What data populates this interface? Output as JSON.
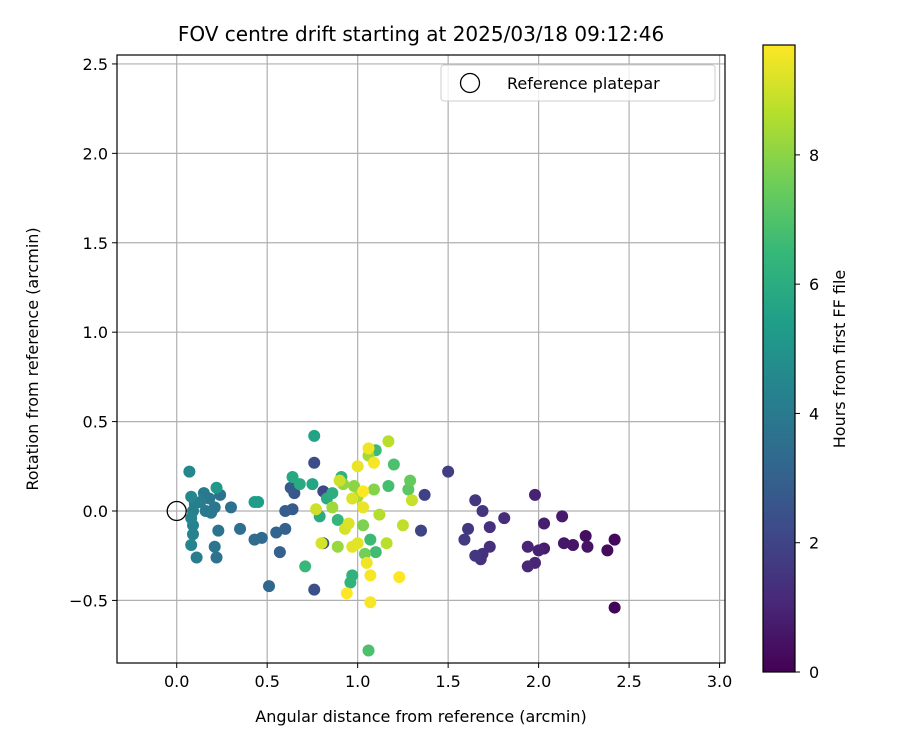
{
  "chart_data": {
    "type": "scatter",
    "title": "FOV centre drift starting at 2025/03/18 09:12:46",
    "xlabel": "Angular distance from reference (arcmin)",
    "ylabel": "Rotation from reference (arcmin)",
    "xlim": [
      -0.33,
      3.03
    ],
    "ylim": [
      -0.85,
      2.55
    ],
    "x_ticks": [
      "0.0",
      "0.5",
      "1.0",
      "1.5",
      "2.0",
      "2.5",
      "3.0"
    ],
    "y_ticks": [
      "−0.5",
      "0.0",
      "0.5",
      "1.0",
      "1.5",
      "2.0",
      "2.5"
    ],
    "grid": true,
    "legend": {
      "position": "top-right",
      "entries": [
        "Reference platepar"
      ]
    },
    "reference_point": {
      "x": 0.0,
      "y": 0.0
    },
    "colorbar": {
      "label": "Hours from first FF file",
      "range": [
        0,
        9.7
      ],
      "ticks": [
        "0",
        "2",
        "4",
        "6",
        "8"
      ],
      "colormap": "viridis"
    },
    "points": [
      {
        "x": 2.42,
        "y": -0.54,
        "h": 0.1
      },
      {
        "x": 2.42,
        "y": -0.16,
        "h": 0.2
      },
      {
        "x": 2.38,
        "y": -0.22,
        "h": 0.3
      },
      {
        "x": 2.26,
        "y": -0.14,
        "h": 0.4
      },
      {
        "x": 2.27,
        "y": -0.2,
        "h": 0.5
      },
      {
        "x": 2.19,
        "y": -0.19,
        "h": 0.5
      },
      {
        "x": 2.14,
        "y": -0.18,
        "h": 0.6
      },
      {
        "x": 2.13,
        "y": -0.03,
        "h": 0.7
      },
      {
        "x": 2.03,
        "y": -0.21,
        "h": 0.8
      },
      {
        "x": 2.03,
        "y": -0.07,
        "h": 0.8
      },
      {
        "x": 2.0,
        "y": -0.22,
        "h": 0.9
      },
      {
        "x": 1.98,
        "y": 0.09,
        "h": 0.9
      },
      {
        "x": 1.98,
        "y": -0.29,
        "h": 1.0
      },
      {
        "x": 1.94,
        "y": -0.2,
        "h": 1.0
      },
      {
        "x": 1.94,
        "y": -0.31,
        "h": 1.1
      },
      {
        "x": 1.81,
        "y": -0.04,
        "h": 1.2
      },
      {
        "x": 1.73,
        "y": -0.2,
        "h": 1.3
      },
      {
        "x": 1.73,
        "y": -0.09,
        "h": 1.3
      },
      {
        "x": 1.69,
        "y": -0.24,
        "h": 1.4
      },
      {
        "x": 1.68,
        "y": -0.27,
        "h": 1.4
      },
      {
        "x": 1.69,
        "y": 0.0,
        "h": 1.5
      },
      {
        "x": 1.65,
        "y": 0.06,
        "h": 1.5
      },
      {
        "x": 1.65,
        "y": -0.25,
        "h": 1.6
      },
      {
        "x": 1.61,
        "y": -0.1,
        "h": 1.6
      },
      {
        "x": 1.59,
        "y": -0.16,
        "h": 1.7
      },
      {
        "x": 1.5,
        "y": 0.22,
        "h": 1.8
      },
      {
        "x": 1.37,
        "y": 0.09,
        "h": 1.9
      },
      {
        "x": 1.35,
        "y": -0.11,
        "h": 2.0
      },
      {
        "x": 0.81,
        "y": 0.11,
        "h": 2.1
      },
      {
        "x": 0.76,
        "y": 0.27,
        "h": 2.3
      },
      {
        "x": 0.76,
        "y": -0.44,
        "h": 2.4
      },
      {
        "x": 0.81,
        "y": -0.18,
        "h": 2.5
      },
      {
        "x": 0.65,
        "y": 0.1,
        "h": 2.6
      },
      {
        "x": 0.63,
        "y": 0.13,
        "h": 2.7
      },
      {
        "x": 0.64,
        "y": 0.01,
        "h": 2.8
      },
      {
        "x": 0.6,
        "y": 0.0,
        "h": 2.9
      },
      {
        "x": 0.6,
        "y": -0.1,
        "h": 3.0
      },
      {
        "x": 0.57,
        "y": -0.23,
        "h": 3.0
      },
      {
        "x": 0.55,
        "y": -0.12,
        "h": 3.1
      },
      {
        "x": 0.51,
        "y": -0.42,
        "h": 3.2
      },
      {
        "x": 0.47,
        "y": -0.15,
        "h": 3.3
      },
      {
        "x": 0.43,
        "y": -0.16,
        "h": 3.4
      },
      {
        "x": 0.35,
        "y": -0.1,
        "h": 3.5
      },
      {
        "x": 0.3,
        "y": 0.02,
        "h": 3.6
      },
      {
        "x": 0.24,
        "y": 0.09,
        "h": 3.6
      },
      {
        "x": 0.23,
        "y": -0.11,
        "h": 3.7
      },
      {
        "x": 0.22,
        "y": -0.26,
        "h": 3.7
      },
      {
        "x": 0.21,
        "y": -0.2,
        "h": 3.8
      },
      {
        "x": 0.21,
        "y": 0.02,
        "h": 3.8
      },
      {
        "x": 0.19,
        "y": -0.01,
        "h": 3.9
      },
      {
        "x": 0.18,
        "y": 0.07,
        "h": 3.9
      },
      {
        "x": 0.16,
        "y": 0.0,
        "h": 4.0
      },
      {
        "x": 0.15,
        "y": 0.1,
        "h": 4.0
      },
      {
        "x": 0.13,
        "y": 0.05,
        "h": 4.1
      },
      {
        "x": 0.11,
        "y": -0.26,
        "h": 4.1
      },
      {
        "x": 0.1,
        "y": 0.04,
        "h": 4.2
      },
      {
        "x": 0.09,
        "y": 0.0,
        "h": 4.2
      },
      {
        "x": 0.09,
        "y": -0.08,
        "h": 4.3
      },
      {
        "x": 0.09,
        "y": -0.13,
        "h": 4.3
      },
      {
        "x": 0.08,
        "y": -0.19,
        "h": 4.4
      },
      {
        "x": 0.08,
        "y": -0.04,
        "h": 4.4
      },
      {
        "x": 0.08,
        "y": 0.08,
        "h": 4.5
      },
      {
        "x": 0.07,
        "y": 0.22,
        "h": 4.5
      },
      {
        "x": 0.22,
        "y": 0.13,
        "h": 5.2
      },
      {
        "x": 0.43,
        "y": 0.05,
        "h": 5.3
      },
      {
        "x": 0.45,
        "y": 0.05,
        "h": 5.4
      },
      {
        "x": 0.76,
        "y": 0.42,
        "h": 5.6
      },
      {
        "x": 0.75,
        "y": 0.15,
        "h": 5.7
      },
      {
        "x": 0.64,
        "y": 0.19,
        "h": 5.8
      },
      {
        "x": 0.68,
        "y": 0.15,
        "h": 5.9
      },
      {
        "x": 0.79,
        "y": -0.03,
        "h": 6.0
      },
      {
        "x": 0.83,
        "y": 0.07,
        "h": 6.0
      },
      {
        "x": 0.86,
        "y": 0.1,
        "h": 6.1
      },
      {
        "x": 0.91,
        "y": 0.19,
        "h": 6.2
      },
      {
        "x": 0.97,
        "y": -0.36,
        "h": 6.2
      },
      {
        "x": 0.96,
        "y": -0.4,
        "h": 6.3
      },
      {
        "x": 0.89,
        "y": -0.05,
        "h": 6.4
      },
      {
        "x": 0.71,
        "y": -0.31,
        "h": 6.5
      },
      {
        "x": 1.07,
        "y": -0.16,
        "h": 6.6
      },
      {
        "x": 1.1,
        "y": 0.34,
        "h": 6.6
      },
      {
        "x": 1.1,
        "y": -0.23,
        "h": 6.7
      },
      {
        "x": 1.17,
        "y": 0.14,
        "h": 6.8
      },
      {
        "x": 1.2,
        "y": 0.26,
        "h": 6.9
      },
      {
        "x": 1.06,
        "y": -0.78,
        "h": 6.9
      },
      {
        "x": 1.28,
        "y": 0.12,
        "h": 7.2
      },
      {
        "x": 1.29,
        "y": 0.17,
        "h": 7.4
      },
      {
        "x": 1.04,
        "y": -0.24,
        "h": 7.6
      },
      {
        "x": 1.03,
        "y": -0.08,
        "h": 7.8
      },
      {
        "x": 1.09,
        "y": 0.12,
        "h": 7.9
      },
      {
        "x": 0.98,
        "y": 0.14,
        "h": 8.0
      },
      {
        "x": 0.92,
        "y": 0.15,
        "h": 8.1
      },
      {
        "x": 0.89,
        "y": -0.2,
        "h": 8.2
      },
      {
        "x": 0.86,
        "y": 0.02,
        "h": 8.3
      },
      {
        "x": 1.06,
        "y": 0.31,
        "h": 8.4
      },
      {
        "x": 1.0,
        "y": 0.08,
        "h": 8.5
      },
      {
        "x": 1.12,
        "y": -0.02,
        "h": 8.6
      },
      {
        "x": 1.17,
        "y": 0.39,
        "h": 8.7
      },
      {
        "x": 1.16,
        "y": -0.18,
        "h": 8.7
      },
      {
        "x": 1.25,
        "y": -0.08,
        "h": 8.8
      },
      {
        "x": 1.3,
        "y": 0.06,
        "h": 8.9
      },
      {
        "x": 0.9,
        "y": 0.17,
        "h": 9.0
      },
      {
        "x": 0.77,
        "y": 0.01,
        "h": 9.0
      },
      {
        "x": 0.8,
        "y": -0.18,
        "h": 9.1
      },
      {
        "x": 0.93,
        "y": -0.1,
        "h": 9.1
      },
      {
        "x": 0.95,
        "y": -0.07,
        "h": 9.2
      },
      {
        "x": 0.97,
        "y": 0.07,
        "h": 9.2
      },
      {
        "x": 0.97,
        "y": -0.2,
        "h": 9.3
      },
      {
        "x": 1.0,
        "y": -0.18,
        "h": 9.3
      },
      {
        "x": 1.0,
        "y": 0.25,
        "h": 9.4
      },
      {
        "x": 1.03,
        "y": 0.02,
        "h": 9.4
      },
      {
        "x": 1.05,
        "y": -0.29,
        "h": 9.5
      },
      {
        "x": 1.06,
        "y": 0.35,
        "h": 9.5
      },
      {
        "x": 1.07,
        "y": -0.36,
        "h": 9.6
      },
      {
        "x": 1.07,
        "y": -0.51,
        "h": 9.6
      },
      {
        "x": 1.09,
        "y": 0.27,
        "h": 9.6
      },
      {
        "x": 1.23,
        "y": -0.37,
        "h": 9.7
      },
      {
        "x": 0.94,
        "y": -0.46,
        "h": 9.7
      },
      {
        "x": 1.03,
        "y": 0.11,
        "h": 9.7
      }
    ]
  }
}
